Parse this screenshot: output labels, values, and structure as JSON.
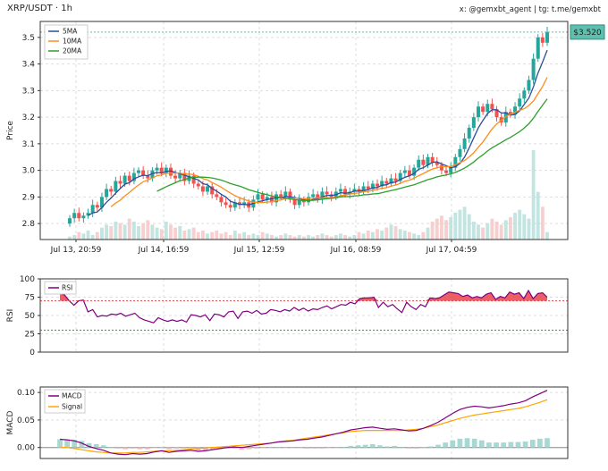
{
  "header": {
    "title": "XRP/USDT · 1h",
    "credit": "x: @gemxbt_agent | tg: t.me/gemxbt"
  },
  "price_badge": "$3.520",
  "colors": {
    "up": "#26a69a",
    "down": "#ef5350",
    "ma5": "#2a4d9b",
    "ma10": "#ff8c1a",
    "ma20": "#2ca02c",
    "rsi": "#800080",
    "macd": "#800080",
    "signal": "#ffa500",
    "badge_bg": "#5fbfae"
  },
  "chart_data": [
    {
      "type": "candlestick",
      "ylabel": "Price",
      "ylim": [
        2.74,
        3.56
      ],
      "yticks": [
        "2.8",
        "2.9",
        "3.0",
        "3.1",
        "3.2",
        "3.3",
        "3.4",
        "3.5"
      ],
      "xticks": [
        "Jul 13, 20:59",
        "Jul 14, 16:59",
        "Jul 15, 12:59",
        "Jul 16, 08:59",
        "Jul 17, 04:59"
      ],
      "legend": [
        "5MA",
        "10MA",
        "20MA"
      ],
      "last_price": 3.52,
      "approx_closes": [
        2.82,
        2.84,
        2.82,
        2.83,
        2.84,
        2.87,
        2.86,
        2.9,
        2.93,
        2.92,
        2.96,
        2.95,
        2.98,
        2.96,
        2.99,
        3.0,
        2.98,
        2.97,
        3.0,
        3.01,
        2.99,
        3.01,
        2.98,
        2.97,
        2.99,
        2.96,
        2.98,
        2.95,
        2.94,
        2.92,
        2.94,
        2.91,
        2.9,
        2.88,
        2.87,
        2.86,
        2.88,
        2.87,
        2.88,
        2.86,
        2.89,
        2.91,
        2.89,
        2.9,
        2.88,
        2.91,
        2.9,
        2.92,
        2.89,
        2.87,
        2.89,
        2.88,
        2.9,
        2.91,
        2.89,
        2.92,
        2.91,
        2.9,
        2.92,
        2.93,
        2.91,
        2.92,
        2.93,
        2.92,
        2.94,
        2.93,
        2.95,
        2.94,
        2.96,
        2.95,
        2.97,
        2.96,
        2.99,
        3.0,
        2.98,
        3.01,
        3.04,
        3.02,
        3.05,
        3.03,
        3.02,
        3.0,
        2.99,
        3.01,
        3.05,
        3.08,
        3.12,
        3.16,
        3.2,
        3.24,
        3.22,
        3.25,
        3.23,
        3.2,
        3.18,
        3.22,
        3.21,
        3.24,
        3.27,
        3.3,
        3.34,
        3.42,
        3.5,
        3.48,
        3.52
      ],
      "approx_volume": [
        0.02,
        0.03,
        0.05,
        0.04,
        0.06,
        0.03,
        0.05,
        0.08,
        0.1,
        0.09,
        0.12,
        0.11,
        0.1,
        0.14,
        0.12,
        0.09,
        0.11,
        0.13,
        0.1,
        0.08,
        0.07,
        0.12,
        0.1,
        0.08,
        0.09,
        0.06,
        0.07,
        0.08,
        0.05,
        0.06,
        0.04,
        0.05,
        0.06,
        0.04,
        0.05,
        0.03,
        0.06,
        0.04,
        0.05,
        0.03,
        0.04,
        0.03,
        0.05,
        0.04,
        0.03,
        0.02,
        0.03,
        0.04,
        0.03,
        0.02,
        0.03,
        0.02,
        0.03,
        0.02,
        0.03,
        0.04,
        0.03,
        0.02,
        0.03,
        0.04,
        0.03,
        0.02,
        0.03,
        0.05,
        0.04,
        0.06,
        0.05,
        0.07,
        0.06,
        0.08,
        0.1,
        0.09,
        0.07,
        0.06,
        0.05,
        0.04,
        0.03,
        0.05,
        0.08,
        0.12,
        0.14,
        0.16,
        0.13,
        0.15,
        0.18,
        0.2,
        0.22,
        0.17,
        0.12,
        0.1,
        0.08,
        0.11,
        0.14,
        0.12,
        0.1,
        0.13,
        0.15,
        0.18,
        0.2,
        0.17,
        0.14,
        0.6,
        0.32,
        0.22,
        0.05
      ]
    },
    {
      "type": "line",
      "ylabel": "RSI",
      "ylim": [
        0,
        100
      ],
      "yticks": [
        "0",
        "25",
        "50",
        "75",
        "100"
      ],
      "legend": [
        "RSI"
      ],
      "levels": [
        70,
        30
      ],
      "approx_values": [
        80,
        78,
        70,
        64,
        70,
        71,
        55,
        58,
        48,
        50,
        49,
        52,
        51,
        53,
        49,
        51,
        53,
        47,
        44,
        42,
        40,
        47,
        44,
        42,
        44,
        42,
        44,
        41,
        51,
        50,
        48,
        51,
        43,
        52,
        51,
        48,
        55,
        56,
        46,
        55,
        56,
        53,
        57,
        52,
        53,
        58,
        57,
        55,
        58,
        56,
        61,
        57,
        60,
        56,
        59,
        58,
        61,
        63,
        59,
        62,
        65,
        64,
        68,
        66,
        73,
        74,
        74,
        75,
        61,
        68,
        62,
        65,
        59,
        54,
        68,
        62,
        58,
        65,
        62,
        74,
        73,
        74,
        78,
        82,
        81,
        80,
        76,
        78,
        74,
        76,
        74,
        79,
        81,
        72,
        76,
        74,
        82,
        79,
        81,
        73,
        84,
        73,
        80,
        81,
        75
      ]
    },
    {
      "type": "line",
      "ylabel": "MACD",
      "ylim": [
        -0.02,
        0.11
      ],
      "yticks": [
        "0.00",
        "0.05",
        "0.10"
      ],
      "legend": [
        "MACD",
        "Signal"
      ],
      "approx_macd": [
        0.015,
        0.014,
        0.012,
        0.008,
        0.002,
        -0.002,
        -0.005,
        -0.01,
        -0.012,
        -0.013,
        -0.011,
        -0.012,
        -0.011,
        -0.008,
        -0.006,
        -0.009,
        -0.007,
        -0.006,
        -0.005,
        -0.007,
        -0.006,
        -0.004,
        -0.002,
        0.0,
        0.001,
        0.0,
        0.002,
        0.004,
        0.006,
        0.008,
        0.01,
        0.011,
        0.012,
        0.014,
        0.015,
        0.017,
        0.019,
        0.022,
        0.025,
        0.028,
        0.032,
        0.034,
        0.036,
        0.037,
        0.035,
        0.033,
        0.034,
        0.032,
        0.03,
        0.031,
        0.035,
        0.04,
        0.046,
        0.054,
        0.062,
        0.069,
        0.073,
        0.075,
        0.074,
        0.072,
        0.074,
        0.076,
        0.079,
        0.081,
        0.085,
        0.092,
        0.098,
        0.104
      ],
      "approx_signal": [
        0.0,
        0.0,
        -0.002,
        -0.004,
        -0.006,
        -0.008,
        -0.009,
        -0.01,
        -0.01,
        -0.01,
        -0.009,
        -0.009,
        -0.008,
        -0.007,
        -0.006,
        -0.006,
        -0.005,
        -0.004,
        -0.003,
        -0.002,
        -0.001,
        0.0,
        0.001,
        0.002,
        0.003,
        0.004,
        0.005,
        0.006,
        0.007,
        0.008,
        0.01,
        0.012,
        0.013,
        0.015,
        0.017,
        0.019,
        0.021,
        0.023,
        0.025,
        0.027,
        0.029,
        0.03,
        0.031,
        0.031,
        0.031,
        0.031,
        0.031,
        0.031,
        0.032,
        0.033,
        0.035,
        0.038,
        0.041,
        0.045,
        0.049,
        0.053,
        0.056,
        0.059,
        0.061,
        0.063,
        0.065,
        0.067,
        0.069,
        0.071,
        0.074,
        0.078,
        0.082,
        0.087
      ]
    }
  ]
}
